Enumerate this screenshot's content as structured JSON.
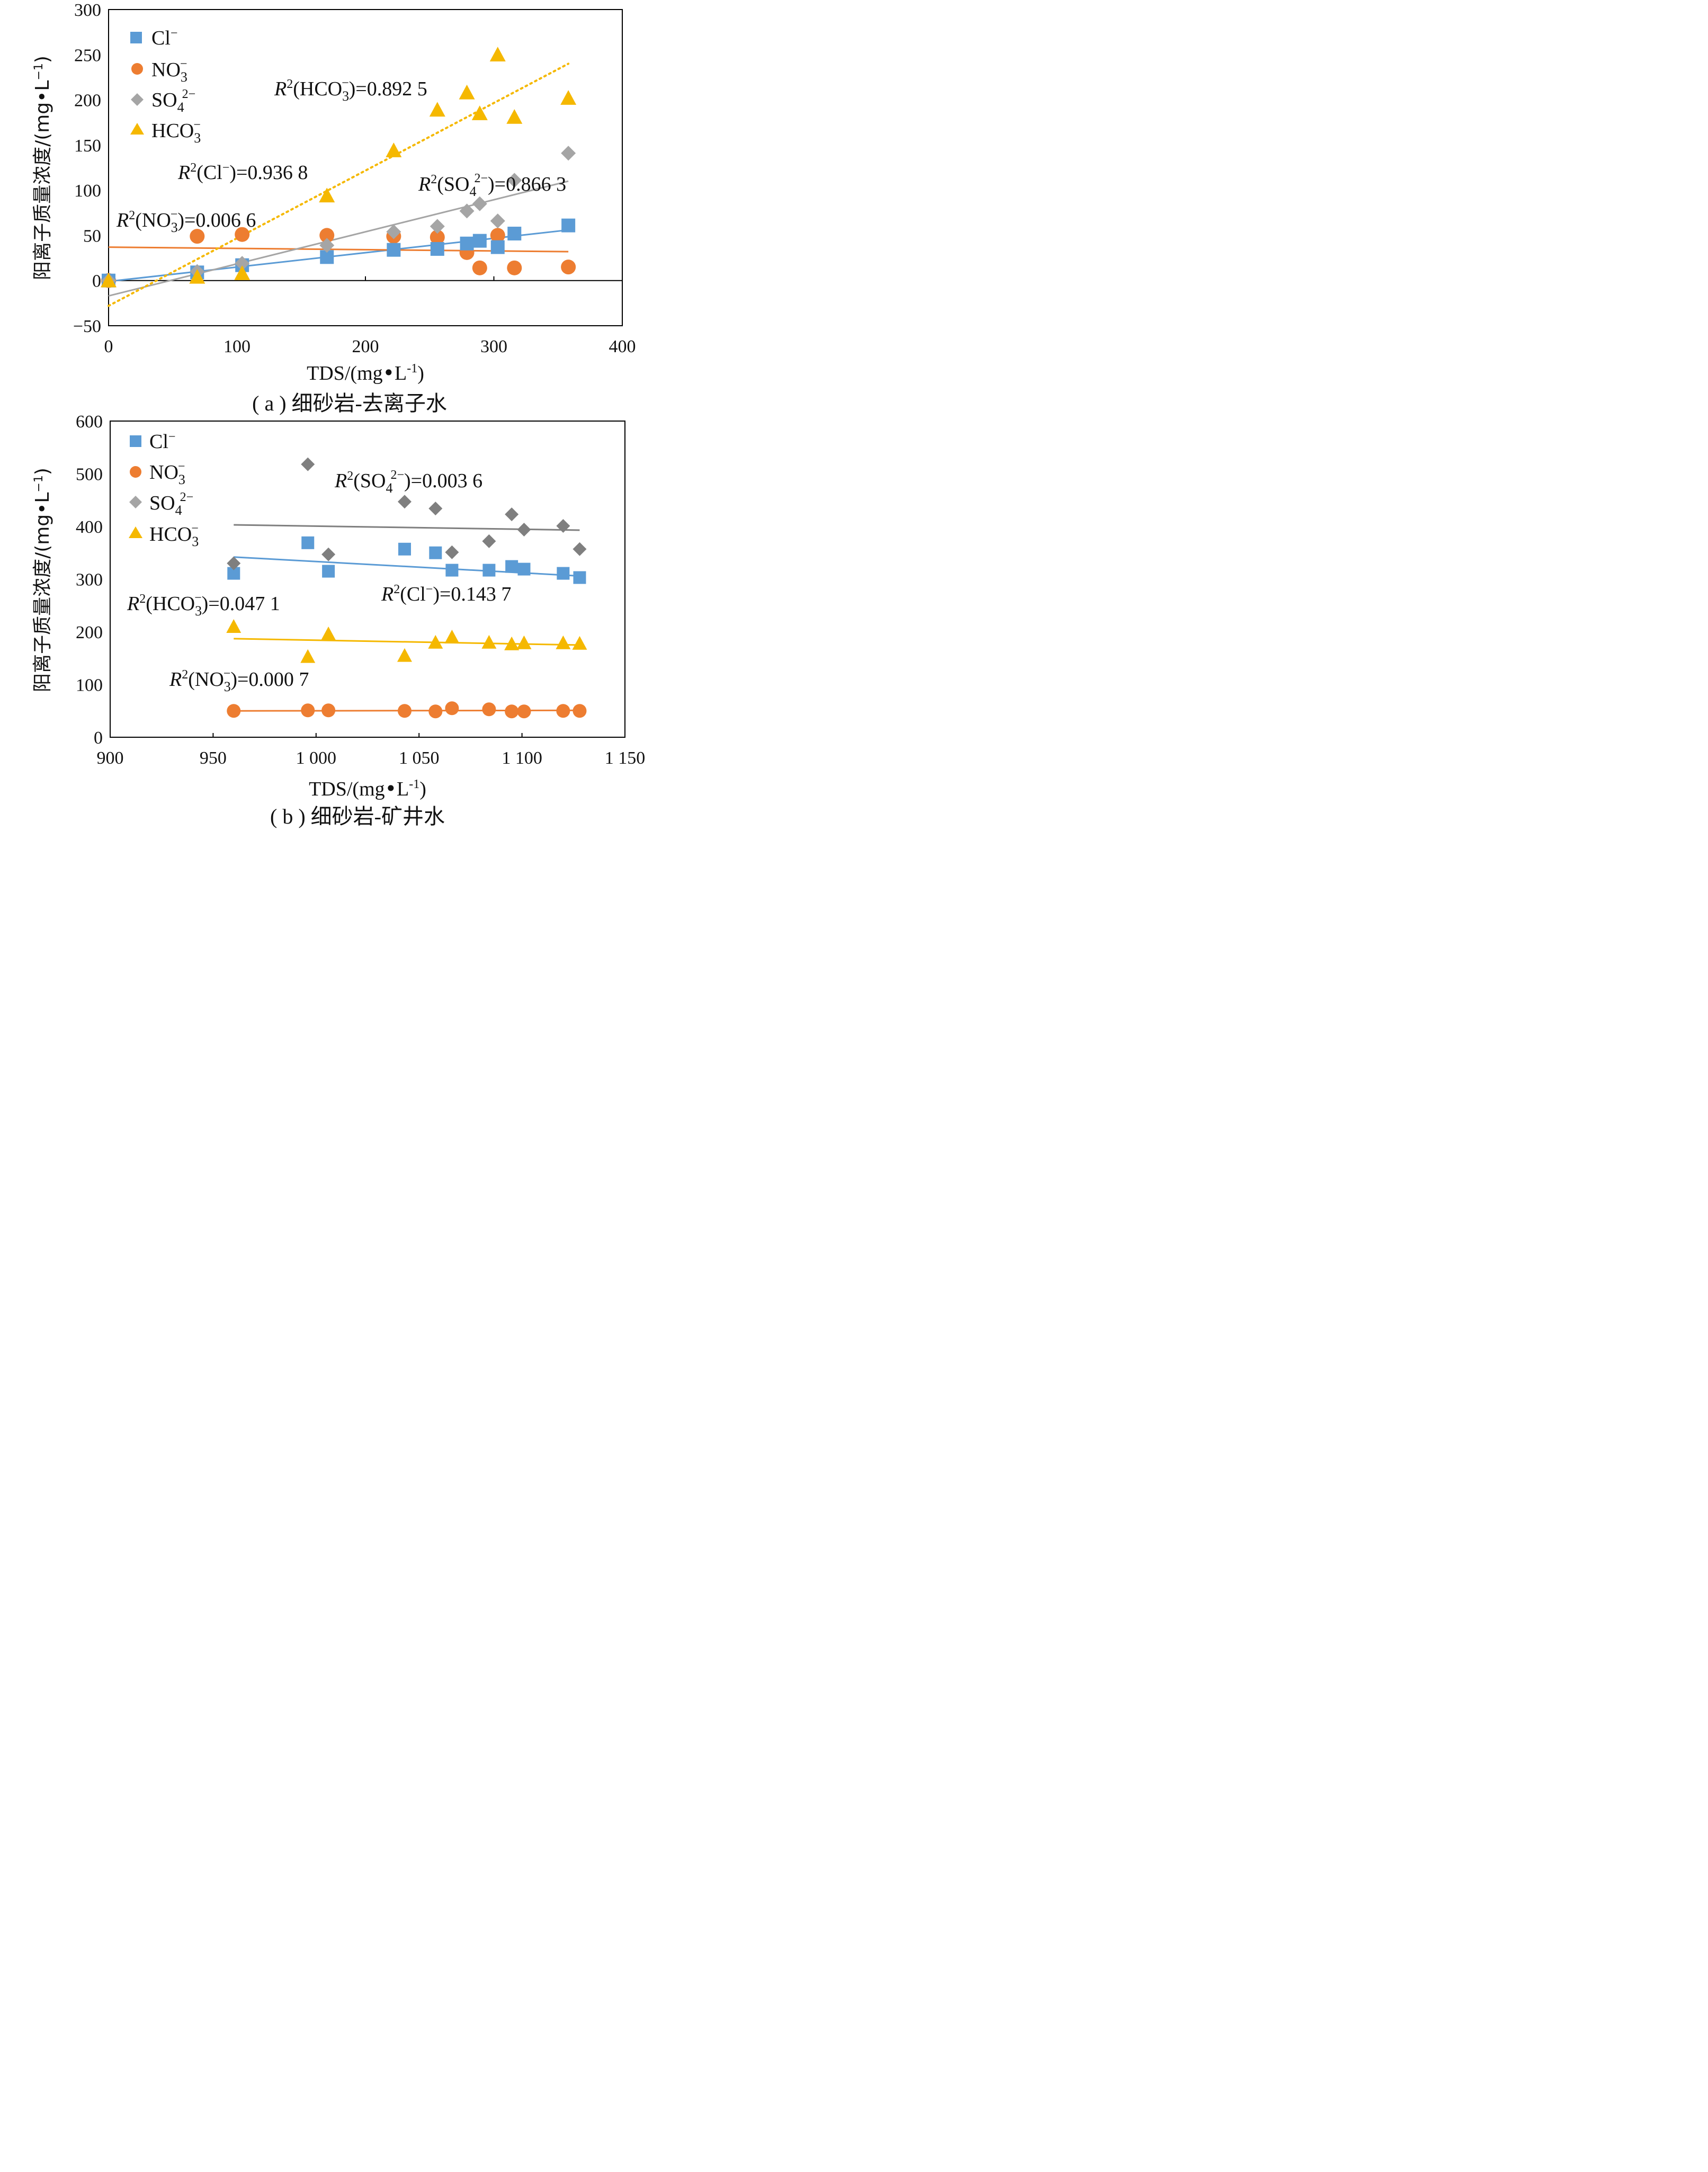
{
  "chart_data": [
    {
      "type": "scatter",
      "title": "",
      "caption": "( a ) 细砂岩-去离子水",
      "xlabel": "TDS/(mg•L⁻¹)",
      "ylabel": "阳离子质量浓度/(mg•L⁻¹)",
      "xlim": [
        0,
        400
      ],
      "ylim": [
        -50,
        300
      ],
      "x_ticks": [
        "0",
        "100",
        "200",
        "300",
        "400"
      ],
      "y_ticks": [
        "300",
        "250",
        "200",
        "150",
        "100",
        "50",
        "0",
        "−50"
      ],
      "grid": false,
      "zero_line": true,
      "legend_position": "top-left",
      "series": [
        {
          "name": "Cl⁻",
          "marker": "square",
          "color": "#5b9bd5",
          "points": [
            [
              0,
              0
            ],
            [
              69,
              9
            ],
            [
              104,
              17
            ],
            [
              170,
              26
            ],
            [
              222,
              34
            ],
            [
              256,
              35
            ],
            [
              279,
              41
            ],
            [
              289,
              44
            ],
            [
              303,
              37
            ],
            [
              316,
              52
            ],
            [
              358,
              61
            ]
          ],
          "trend": [
            [
              0,
              -1
            ],
            [
              358,
              56
            ]
          ],
          "r2_label": "R²(Cl⁻)=0.936 8"
        },
        {
          "name": "NO₃⁻",
          "marker": "circle",
          "color": "#ed7d31",
          "points": [
            [
              0,
              0
            ],
            [
              69,
              49
            ],
            [
              104,
              51
            ],
            [
              170,
              50
            ],
            [
              222,
              49
            ],
            [
              256,
              48
            ],
            [
              279,
              31
            ],
            [
              289,
              14
            ],
            [
              303,
              50
            ],
            [
              316,
              14
            ],
            [
              358,
              15
            ]
          ],
          "trend": [
            [
              0,
              37
            ],
            [
              358,
              32
            ]
          ],
          "r2_label": "R²(NO₃⁻)=0.006 6"
        },
        {
          "name": "SO₄²⁻",
          "marker": "diamond",
          "color": "#a5a5a5",
          "points": [
            [
              0,
              0
            ],
            [
              69,
              10
            ],
            [
              104,
              19
            ],
            [
              170,
              39
            ],
            [
              222,
              54
            ],
            [
              256,
              60
            ],
            [
              279,
              77
            ],
            [
              289,
              85
            ],
            [
              303,
              66
            ],
            [
              316,
              111
            ],
            [
              358,
              141
            ]
          ],
          "trend": [
            [
              0,
              -17
            ],
            [
              358,
              110
            ]
          ],
          "r2_label": "R²(SO₄²⁻)=0.866 3"
        },
        {
          "name": "HCO₃⁻",
          "marker": "triangle",
          "color": "#f5b800",
          "points": [
            [
              0,
              0
            ],
            [
              69,
              4
            ],
            [
              104,
              8
            ],
            [
              170,
              94
            ],
            [
              222,
              144
            ],
            [
              256,
              189
            ],
            [
              279,
              208
            ],
            [
              289,
              185
            ],
            [
              303,
              250
            ],
            [
              316,
              181
            ],
            [
              358,
              202
            ]
          ],
          "trend": [
            [
              0,
              -28
            ],
            [
              358,
              240
            ]
          ],
          "trend_style": "dotted",
          "r2_label": "R²(HCO₃⁻)=0.892 5"
        }
      ]
    },
    {
      "type": "scatter",
      "title": "",
      "caption": "( b ) 细砂岩-矿井水",
      "xlabel": "TDS/(mg•L⁻¹)",
      "ylabel": "阳离子质量浓度/(mg•L⁻¹)",
      "xlim": [
        900,
        1150
      ],
      "ylim": [
        0,
        600
      ],
      "x_ticks": [
        "900",
        "950",
        "1 000",
        "1 050",
        "1 100",
        "1 150"
      ],
      "y_ticks": [
        "600",
        "500",
        "400",
        "300",
        "200",
        "100",
        "0"
      ],
      "grid": false,
      "legend_position": "top-left",
      "series": [
        {
          "name": "Cl⁻",
          "marker": "square",
          "color": "#5b9bd5",
          "points": [
            [
              960,
              311
            ],
            [
              996,
              369
            ],
            [
              1006,
              315
            ],
            [
              1043,
              357
            ],
            [
              1058,
              350
            ],
            [
              1066,
              317
            ],
            [
              1084,
              317
            ],
            [
              1095,
              324
            ],
            [
              1101,
              319
            ],
            [
              1120,
              311
            ],
            [
              1128,
              303
            ]
          ],
          "trend": [
            [
              960,
              342
            ],
            [
              1128,
              306
            ]
          ],
          "r2_label": "R²(Cl⁻)=0.143 7"
        },
        {
          "name": "NO₃⁻",
          "marker": "circle",
          "color": "#ed7d31",
          "points": [
            [
              960,
              50
            ],
            [
              996,
              51
            ],
            [
              1006,
              51
            ],
            [
              1043,
              50
            ],
            [
              1058,
              49
            ],
            [
              1066,
              55
            ],
            [
              1084,
              53
            ],
            [
              1095,
              49
            ],
            [
              1101,
              49
            ],
            [
              1120,
              50
            ],
            [
              1128,
              50
            ]
          ],
          "trend": [
            [
              960,
              50
            ],
            [
              1128,
              51
            ]
          ],
          "r2_label": "R²(NO₃⁻)=0.000 7"
        },
        {
          "name": "SO₄²⁻",
          "marker": "diamond",
          "color": "#7f7f7f",
          "points": [
            [
              960,
              330
            ],
            [
              996,
              518
            ],
            [
              1006,
              347
            ],
            [
              1043,
              447
            ],
            [
              1058,
              434
            ],
            [
              1066,
              351
            ],
            [
              1084,
              372
            ],
            [
              1095,
              423
            ],
            [
              1101,
              394
            ],
            [
              1120,
              401
            ],
            [
              1128,
              357
            ]
          ],
          "trend": [
            [
              960,
              403
            ],
            [
              1128,
              393
            ]
          ],
          "r2_label": "R²(SO₄²⁻)=0.003 6"
        },
        {
          "name": "HCO₃⁻",
          "marker": "triangle",
          "color": "#f5b800",
          "points": [
            [
              960,
              210
            ],
            [
              996,
              153
            ],
            [
              1006,
              196
            ],
            [
              1043,
              155
            ],
            [
              1058,
              180
            ],
            [
              1066,
              190
            ],
            [
              1084,
              180
            ],
            [
              1095,
              177
            ],
            [
              1101,
              179
            ],
            [
              1120,
              179
            ],
            [
              1128,
              178
            ]
          ],
          "trend": [
            [
              960,
              187
            ],
            [
              1128,
              175
            ]
          ],
          "r2_label": "R²(HCO₃⁻)=0.047 1"
        }
      ]
    }
  ]
}
